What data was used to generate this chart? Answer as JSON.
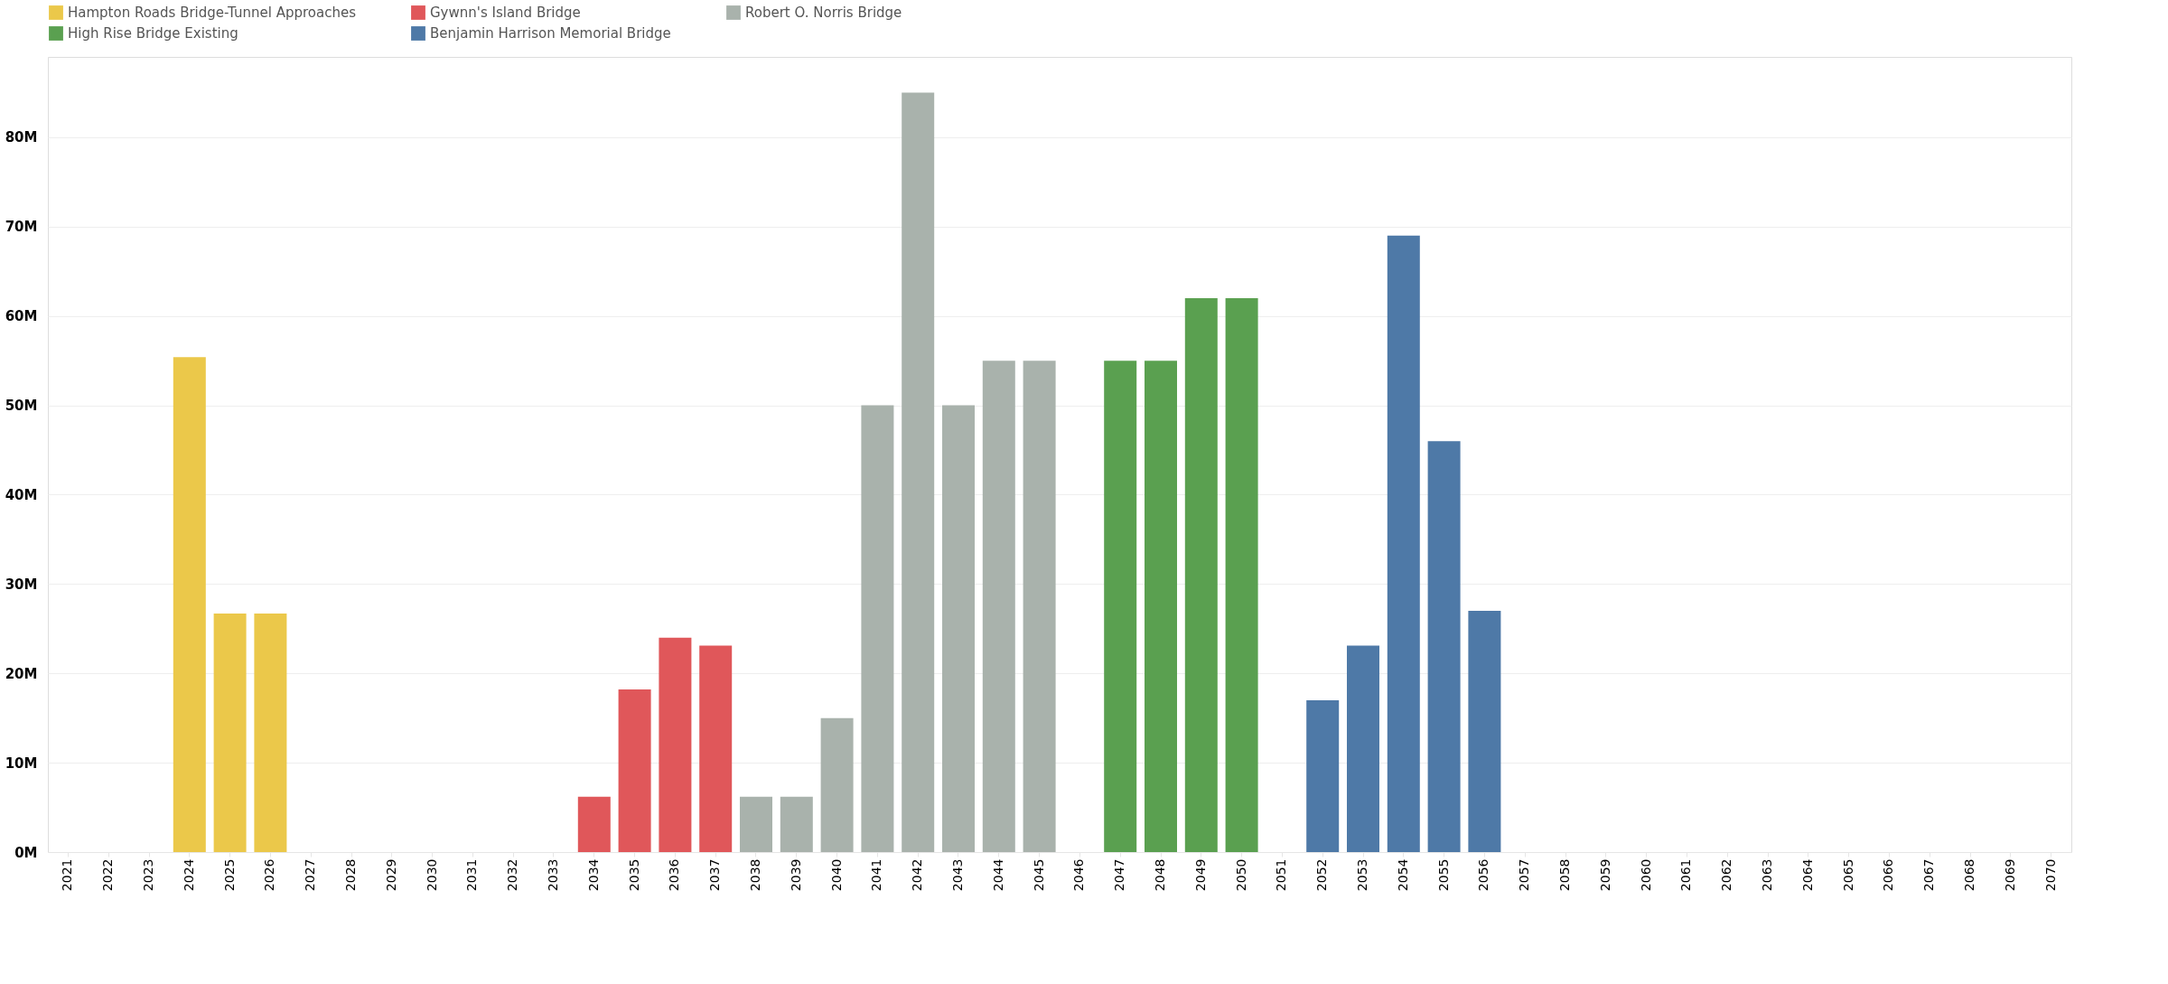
{
  "chart_data": {
    "type": "bar",
    "categories": [
      "2021",
      "2022",
      "2023",
      "2024",
      "2025",
      "2026",
      "2027",
      "2028",
      "2029",
      "2030",
      "2031",
      "2032",
      "2033",
      "2034",
      "2035",
      "2036",
      "2037",
      "2038",
      "2039",
      "2040",
      "2041",
      "2042",
      "2043",
      "2044",
      "2045",
      "2046",
      "2047",
      "2048",
      "2049",
      "2050",
      "2051",
      "2052",
      "2053",
      "2054",
      "2055",
      "2056",
      "2057",
      "2058",
      "2059",
      "2060",
      "2061",
      "2062",
      "2063",
      "2064",
      "2065",
      "2066",
      "2067",
      "2068",
      "2069",
      "2070"
    ],
    "series": [
      {
        "name": "Hampton Roads Bridge-Tunnel Approaches",
        "color": "#ebc84a",
        "values": [
          null,
          null,
          null,
          55.4,
          26.7,
          26.7,
          null,
          null,
          null,
          null,
          null,
          null,
          null,
          null,
          null,
          null,
          null,
          null,
          null,
          null,
          null,
          null,
          null,
          null,
          null,
          null,
          null,
          null,
          null,
          null,
          null,
          null,
          null,
          null,
          null,
          null,
          null,
          null,
          null,
          null,
          null,
          null,
          null,
          null,
          null,
          null,
          null,
          null,
          null,
          null
        ]
      },
      {
        "name": "Gywnn's Island Bridge",
        "color": "#e0575a",
        "values": [
          null,
          null,
          null,
          null,
          null,
          null,
          null,
          null,
          null,
          null,
          null,
          null,
          null,
          6.2,
          18.2,
          24,
          23.1,
          null,
          null,
          null,
          null,
          null,
          null,
          null,
          null,
          null,
          null,
          null,
          null,
          null,
          null,
          null,
          null,
          null,
          null,
          null,
          null,
          null,
          null,
          null,
          null,
          null,
          null,
          null,
          null,
          null,
          null,
          null,
          null,
          null
        ]
      },
      {
        "name": "Robert O. Norris Bridge",
        "color": "#a9b2ac",
        "values": [
          null,
          null,
          null,
          null,
          null,
          null,
          null,
          null,
          null,
          null,
          null,
          null,
          null,
          null,
          null,
          null,
          null,
          6.2,
          6.2,
          15,
          50,
          85,
          50,
          55,
          55,
          null,
          null,
          null,
          null,
          null,
          null,
          null,
          null,
          null,
          null,
          null,
          null,
          null,
          null,
          null,
          null,
          null,
          null,
          null,
          null,
          null,
          null,
          null,
          null,
          null
        ]
      },
      {
        "name": "High Rise Bridge Existing",
        "color": "#5aa050",
        "values": [
          null,
          null,
          null,
          null,
          null,
          null,
          null,
          null,
          null,
          null,
          null,
          null,
          null,
          null,
          null,
          null,
          null,
          null,
          null,
          null,
          null,
          null,
          null,
          null,
          null,
          null,
          55,
          55,
          62,
          62,
          null,
          null,
          null,
          null,
          null,
          null,
          null,
          null,
          null,
          null,
          null,
          null,
          null,
          null,
          null,
          null,
          null,
          null,
          null,
          null
        ]
      },
      {
        "name": "Benjamin Harrison Memorial Bridge",
        "color": "#4e79a7",
        "values": [
          null,
          null,
          null,
          null,
          null,
          null,
          null,
          null,
          null,
          null,
          null,
          null,
          null,
          null,
          null,
          null,
          null,
          null,
          null,
          null,
          null,
          null,
          null,
          null,
          null,
          null,
          null,
          null,
          null,
          null,
          null,
          17,
          23.1,
          69,
          46,
          27,
          null,
          null,
          null,
          null,
          null,
          null,
          null,
          null,
          null,
          null,
          null,
          null,
          null,
          null
        ]
      }
    ],
    "ylim": [
      0,
      89
    ],
    "yticks": [
      {
        "value": 0,
        "label": "0M"
      },
      {
        "value": 10,
        "label": "10M"
      },
      {
        "value": 20,
        "label": "20M"
      },
      {
        "value": 30,
        "label": "30M"
      },
      {
        "value": 40,
        "label": "40M"
      },
      {
        "value": 50,
        "label": "50M"
      },
      {
        "value": 60,
        "label": "60M"
      },
      {
        "value": 70,
        "label": "70M"
      },
      {
        "value": 80,
        "label": "80M"
      }
    ],
    "grid": "y",
    "legend": "top left"
  }
}
